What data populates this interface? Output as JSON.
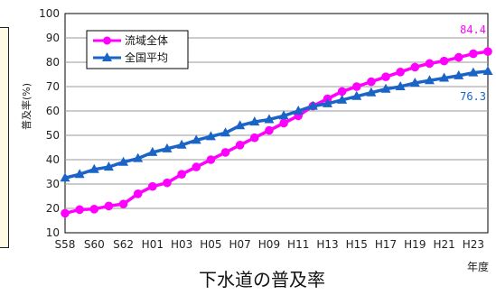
{
  "chart_data": {
    "type": "line",
    "title": "下水道の普及率",
    "xlabel": "年度",
    "ylabel": "普及率(%)",
    "ylim": [
      10,
      100
    ],
    "yticks": [
      10,
      20,
      30,
      40,
      50,
      60,
      70,
      80,
      90,
      100
    ],
    "grid": true,
    "legend_position": "top-left",
    "x": [
      "S58",
      "S59",
      "S60",
      "S61",
      "S62",
      "S63",
      "H01",
      "H02",
      "H03",
      "H04",
      "H05",
      "H06",
      "H07",
      "H08",
      "H09",
      "H10",
      "H11",
      "H12",
      "H13",
      "H14",
      "H15",
      "H16",
      "H17",
      "H18",
      "H19",
      "H20",
      "H21",
      "H22",
      "H23",
      "H24"
    ],
    "x_tick_labels": [
      "S58",
      "S60",
      "S62",
      "H01",
      "H03",
      "H05",
      "H07",
      "H09",
      "H11",
      "H13",
      "H15",
      "H17",
      "H19",
      "H21",
      "H23"
    ],
    "series": [
      {
        "name": "流域全体",
        "color": "#ff00ff",
        "marker": "circle",
        "end_label": "84.4",
        "values": [
          18,
          19.5,
          19.7,
          21,
          21.8,
          26,
          29,
          30.5,
          34,
          37,
          40,
          43,
          46,
          49,
          52,
          55,
          58,
          62,
          65,
          68,
          70,
          72,
          74,
          76,
          78,
          79.5,
          80.5,
          82,
          83.5,
          84.4
        ]
      },
      {
        "name": "全国平均",
        "color": "#1a64c8",
        "marker": "triangle",
        "end_label": "76.3",
        "values": [
          32.5,
          34,
          36,
          37,
          39,
          40.5,
          43,
          44.5,
          46,
          48,
          49.5,
          51,
          54,
          55.5,
          56.5,
          58,
          60,
          62,
          63,
          64.5,
          66,
          67.5,
          69,
          70,
          71.5,
          72.5,
          73.5,
          74.5,
          75.7,
          76.3
        ]
      }
    ]
  }
}
